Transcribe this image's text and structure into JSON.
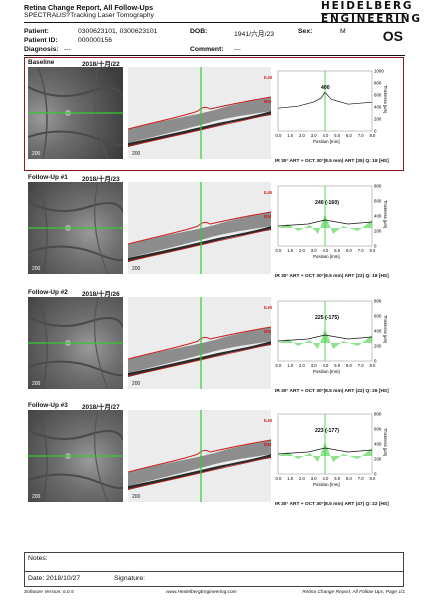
{
  "header": {
    "title": "Retina Change Report, All Follow-Ups",
    "subtitle": "SPECTRALIS?Tracking Laser Tomography",
    "logo_line1": "HEIDELBERG",
    "logo_line2": "ENGINEERING",
    "eye": "OS"
  },
  "patient": {
    "patient_label": "Patient:",
    "patient_value": "0300623101, 0300623101",
    "dob_label": "DOB:",
    "dob_value": "1941/六月/23",
    "sex_label": "Sex:",
    "sex_value": "M",
    "id_label": "Patient ID:",
    "id_value": "000000156",
    "diagnosis_label": "Diagnosis:",
    "diagnosis_value": "---",
    "comment_label": "Comment:",
    "comment_value": "---"
  },
  "exams": [
    {
      "title": "Baseline",
      "date": "2018/十月/22",
      "value": "400",
      "info": "IR 30° ART + OCT 30°(8.5 mm) ART (35) Q: 18 [HS]",
      "fundus_scale": "200",
      "oct_scale": "200"
    },
    {
      "title": "Follow-Up #1",
      "date": "2018/十月/23",
      "value": "240 (-160)",
      "info": "IR 30° ART + OCT 30°(8.5 mm) ART (22) Q: 18 [HS]",
      "fundus_scale": "200",
      "oct_scale": "200"
    },
    {
      "title": "Follow-Up #2",
      "date": "2018/十月/26",
      "value": "225 (-175)",
      "info": "IR 30° ART + OCT 30°(8.5 mm) ART (22) Q: 26 [HS]",
      "fundus_scale": "200",
      "oct_scale": "200"
    },
    {
      "title": "Follow-Up #3",
      "date": "2018/十月/27",
      "value": "223 (-177)",
      "info": "IR 30° ART + OCT 30°(8.5 mm) ART (47) Q: 22 [HS]",
      "fundus_scale": "200",
      "oct_scale": "200"
    }
  ],
  "chart_labels": {
    "ilm": "ILM",
    "bm": "BM",
    "ylabel": "Thickness [µm]",
    "xlabel": "Position [mm]",
    "yticks": [
      "1000",
      "800",
      "600",
      "400",
      "200",
      "0"
    ],
    "yticks_small": [
      "800",
      "600",
      "400",
      "200",
      "0"
    ],
    "xticks": [
      "0.0",
      "1.0",
      "2.0",
      "3.0",
      "4.0",
      "5.0",
      "6.0",
      "7.0",
      "8.0"
    ]
  },
  "notes": {
    "label": "Notes:",
    "date": "Date: 2018/10/27",
    "signature": "Signature:"
  },
  "footer": {
    "software": "Software Version: 6.0.5",
    "url": "www.HeidelbergEngineering.com",
    "page": "Retina Change Report, All Follow-Ups, Page 1/1"
  },
  "colors": {
    "baseline_border": "#8b1a1a",
    "scan_line": "#33cc33",
    "ilm_line": "#cc2222",
    "chart_fill": "#33cc33"
  }
}
